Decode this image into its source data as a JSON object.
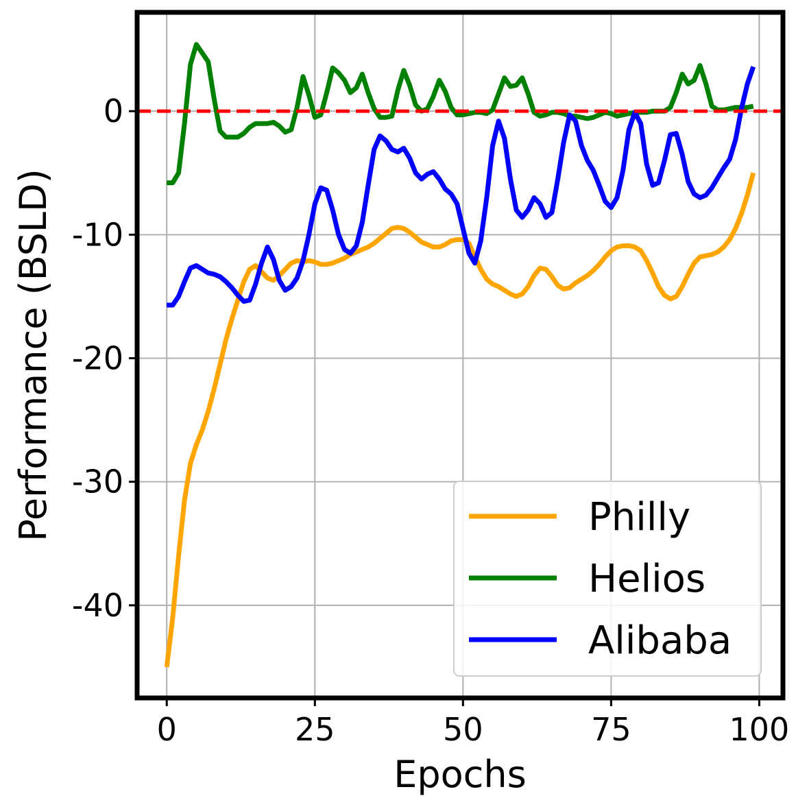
{
  "chart_data": {
    "type": "line",
    "title": "",
    "xlabel": "Epochs",
    "ylabel": "Performance (BSLD)",
    "xlim": [
      -5,
      104
    ],
    "ylim": [
      -47.5,
      8
    ],
    "xticks": [
      0,
      25,
      50,
      75,
      100
    ],
    "yticks": [
      0,
      -10,
      -20,
      -30,
      -40
    ],
    "grid": true,
    "legend_position": "lower-right",
    "reference_line": {
      "y": 0,
      "color": "#ff0000",
      "style": "dashed"
    },
    "colors": {
      "Philly": "#ffa500",
      "Helios": "#008000",
      "Alibaba": "#0000ff"
    },
    "series": [
      {
        "name": "Philly",
        "x": [
          0,
          1,
          2,
          3,
          4,
          5,
          6,
          7,
          8,
          9,
          10,
          11,
          12,
          13,
          14,
          15,
          16,
          17,
          18,
          19,
          20,
          21,
          22,
          23,
          24,
          25,
          26,
          27,
          28,
          29,
          30,
          31,
          32,
          33,
          34,
          35,
          36,
          37,
          38,
          39,
          40,
          41,
          42,
          43,
          44,
          45,
          46,
          47,
          48,
          49,
          50,
          51,
          52,
          53,
          54,
          55,
          56,
          57,
          58,
          59,
          60,
          61,
          62,
          63,
          64,
          65,
          66,
          67,
          68,
          69,
          70,
          71,
          72,
          73,
          74,
          75,
          76,
          77,
          78,
          79,
          80,
          81,
          82,
          83,
          84,
          85,
          86,
          87,
          88,
          89,
          90,
          91,
          92,
          93,
          94,
          95,
          96,
          97,
          98,
          99
        ],
        "values": [
          -45,
          -41,
          -36,
          -31.5,
          -28.5,
          -27,
          -25.8,
          -24.3,
          -22.5,
          -20.5,
          -18.5,
          -16.8,
          -15.3,
          -13.8,
          -12.8,
          -12.5,
          -13,
          -13.5,
          -13.7,
          -13.3,
          -12.8,
          -12.3,
          -12.1,
          -12.2,
          -12.1,
          -12.2,
          -12.4,
          -12.4,
          -12.3,
          -12.1,
          -11.9,
          -11.6,
          -11.4,
          -11.2,
          -11,
          -10.7,
          -10.3,
          -9.9,
          -9.5,
          -9.4,
          -9.5,
          -9.8,
          -10.2,
          -10.6,
          -10.8,
          -11,
          -11,
          -10.8,
          -10.5,
          -10.4,
          -10.4,
          -10.7,
          -11.8,
          -12.8,
          -13.6,
          -14,
          -14.2,
          -14.5,
          -14.8,
          -15,
          -14.8,
          -14.2,
          -13.3,
          -12.7,
          -12.8,
          -13.4,
          -14.1,
          -14.4,
          -14.3,
          -13.9,
          -13.6,
          -13.3,
          -12.9,
          -12.4,
          -11.8,
          -11.3,
          -11,
          -10.9,
          -10.9,
          -11,
          -11.3,
          -12.1,
          -13.1,
          -14.2,
          -14.9,
          -15.2,
          -15,
          -14.2,
          -13.2,
          -12.3,
          -11.8,
          -11.7,
          -11.6,
          -11.4,
          -11,
          -10.4,
          -9.5,
          -8.3,
          -6.8,
          -5
        ]
      },
      {
        "name": "Helios",
        "x": [
          0,
          1,
          2,
          3,
          4,
          5,
          6,
          7,
          8,
          9,
          10,
          11,
          12,
          13,
          14,
          15,
          16,
          17,
          18,
          19,
          20,
          21,
          22,
          23,
          24,
          25,
          26,
          27,
          28,
          29,
          30,
          31,
          32,
          33,
          34,
          35,
          36,
          37,
          38,
          39,
          40,
          41,
          42,
          43,
          44,
          45,
          46,
          47,
          48,
          49,
          50,
          51,
          52,
          53,
          54,
          55,
          56,
          57,
          58,
          59,
          60,
          61,
          62,
          63,
          64,
          65,
          66,
          67,
          68,
          69,
          70,
          71,
          72,
          73,
          74,
          75,
          76,
          77,
          78,
          79,
          80,
          81,
          82,
          83,
          84,
          85,
          86,
          87,
          88,
          89,
          90,
          91,
          92,
          93,
          94,
          95,
          96,
          97,
          98,
          99
        ],
        "values": [
          -5.8,
          -5.8,
          -5,
          -1,
          3.8,
          5.4,
          4.7,
          4,
          1,
          -1.6,
          -2.1,
          -2.1,
          -2.1,
          -1.8,
          -1.3,
          -1,
          -1,
          -1,
          -0.9,
          -1.2,
          -1.7,
          -1.5,
          0.3,
          2.8,
          1.3,
          -0.5,
          -0.3,
          1.5,
          3.5,
          3.1,
          2.5,
          1.5,
          1.9,
          3,
          1.5,
          0.2,
          -0.5,
          -0.5,
          -0.4,
          1.7,
          3.3,
          2.1,
          0.5,
          0,
          0.2,
          1.2,
          2.5,
          1.6,
          0.3,
          -0.3,
          -0.3,
          -0.2,
          -0.1,
          -0.1,
          -0.2,
          0.1,
          1.4,
          2.7,
          2,
          2.1,
          2.7,
          1.4,
          -0.1,
          -0.4,
          -0.3,
          -0.1,
          -0.1,
          -0.2,
          -0.4,
          -0.4,
          -0.5,
          -0.6,
          -0.5,
          -0.3,
          -0.1,
          -0.2,
          -0.4,
          -0.3,
          -0.2,
          -0.1,
          -0.1,
          -0.1,
          0,
          0,
          0,
          0.3,
          1.5,
          3,
          2.2,
          2.5,
          3.7,
          2.2,
          0.4,
          0.1,
          0.1,
          0.2,
          0.3,
          0.3,
          0.3,
          0.4
        ]
      },
      {
        "name": "Alibaba",
        "x": [
          0,
          1,
          2,
          3,
          4,
          5,
          6,
          7,
          8,
          9,
          10,
          11,
          12,
          13,
          14,
          15,
          16,
          17,
          18,
          19,
          20,
          21,
          22,
          23,
          24,
          25,
          26,
          27,
          28,
          29,
          30,
          31,
          32,
          33,
          34,
          35,
          36,
          37,
          38,
          39,
          40,
          41,
          42,
          43,
          44,
          45,
          46,
          47,
          48,
          49,
          50,
          51,
          52,
          53,
          54,
          55,
          56,
          57,
          58,
          59,
          60,
          61,
          62,
          63,
          64,
          65,
          66,
          67,
          68,
          69,
          70,
          71,
          72,
          73,
          74,
          75,
          76,
          77,
          78,
          79,
          80,
          81,
          82,
          83,
          84,
          85,
          86,
          87,
          88,
          89,
          90,
          91,
          92,
          93,
          94,
          95,
          96,
          97,
          98,
          99
        ],
        "values": [
          -15.7,
          -15.7,
          -15,
          -13.8,
          -12.7,
          -12.5,
          -12.8,
          -13.1,
          -13.2,
          -13.4,
          -13.8,
          -14.3,
          -14.9,
          -15.4,
          -15.3,
          -14,
          -12.3,
          -11,
          -12,
          -13.7,
          -14.5,
          -14.2,
          -13.5,
          -12.1,
          -10,
          -7.5,
          -6.2,
          -6.4,
          -8,
          -10,
          -11.2,
          -11.5,
          -10.9,
          -9,
          -6,
          -3.1,
          -2,
          -2.4,
          -3.1,
          -3.3,
          -3,
          -3.8,
          -5,
          -5.5,
          -5.1,
          -4.9,
          -5.5,
          -6.3,
          -6.7,
          -7.5,
          -9.5,
          -11.5,
          -12.3,
          -10.5,
          -7,
          -2.8,
          -0.8,
          -2.2,
          -5.5,
          -8,
          -8.6,
          -8,
          -7,
          -7.5,
          -8.6,
          -8.2,
          -5.5,
          -2.5,
          -0.3,
          -0.8,
          -2.8,
          -4,
          -4.8,
          -6,
          -7.3,
          -7.8,
          -7,
          -4.8,
          -1.5,
          -0.1,
          -1,
          -4.3,
          -6,
          -5.8,
          -4,
          -1.9,
          -1.8,
          -3.5,
          -5.7,
          -6.7,
          -7,
          -6.8,
          -6.2,
          -5.4,
          -4.6,
          -3.9,
          -2.3,
          0.2,
          2.2,
          3.6
        ]
      }
    ]
  }
}
